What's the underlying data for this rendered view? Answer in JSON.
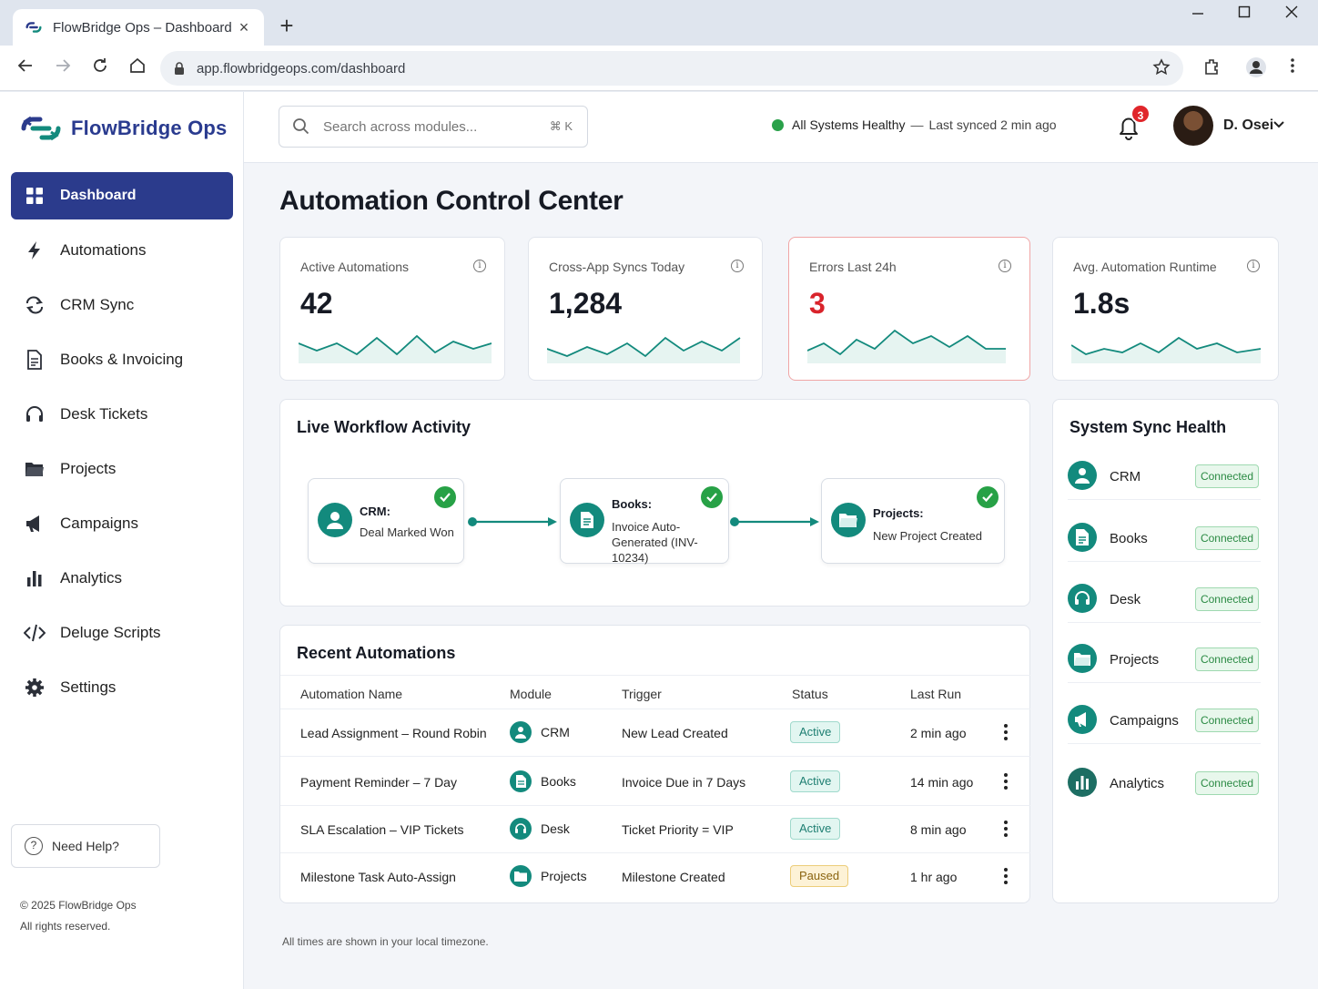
{
  "browser": {
    "tab_title": "FlowBridge Ops – Dashboard",
    "tab_close": "×",
    "new_tab": "+",
    "url": "app.flowbridgeops.com/dashboard"
  },
  "app": {
    "brand": "FlowBridge Ops",
    "accent_color": "#2b3b8c",
    "teal_color": "#138a7d"
  },
  "sidebar": {
    "items": [
      {
        "label": "Dashboard",
        "icon": "dashboard-grid-icon",
        "active": true
      },
      {
        "label": "Automations",
        "icon": "lightning-icon"
      },
      {
        "label": "CRM Sync",
        "icon": "sync-arrows-icon"
      },
      {
        "label": "Books & Invoicing",
        "icon": "document-icon"
      },
      {
        "label": "Desk Tickets",
        "icon": "headset-icon"
      },
      {
        "label": "Projects",
        "icon": "folder-icon"
      },
      {
        "label": "Campaigns",
        "icon": "megaphone-icon"
      },
      {
        "label": "Analytics",
        "icon": "bar-chart-icon"
      },
      {
        "label": "Deluge Scripts",
        "icon": "code-icon"
      },
      {
        "label": "Settings",
        "icon": "gear-icon"
      }
    ],
    "help": "Need Help?",
    "copyright_line1": "© 2025 FlowBridge Ops",
    "copyright_line2": "All rights reserved."
  },
  "header": {
    "search_placeholder": "Search across modules...",
    "search_shortcut": "⌘ K",
    "status_text": "All Systems Healthy",
    "status_sep": "—",
    "last_synced": "Last synced 2 min ago",
    "notification_count": "3",
    "user_name": "D. Osei"
  },
  "page": {
    "title": "Automation Control Center"
  },
  "kpis": [
    {
      "label": "Active Automations",
      "value": "42"
    },
    {
      "label": "Cross-App Syncs Today",
      "value": "1,284"
    },
    {
      "label": "Errors Last 24h",
      "value": "3",
      "alert": true
    },
    {
      "label": "Avg. Automation Runtime",
      "value": "1.8s"
    }
  ],
  "workflow": {
    "title": "Live Workflow Activity",
    "nodes": [
      {
        "title": "CRM:",
        "sub": "Deal Marked Won",
        "status": "complete"
      },
      {
        "title": "Books:",
        "sub": "Invoice Auto-Generated (INV-10234)",
        "status": "complete"
      },
      {
        "title": "Projects:",
        "sub": "New Project Created",
        "status": "complete"
      }
    ]
  },
  "recent": {
    "title": "Recent Automations",
    "columns": [
      "Automation Name",
      "Module",
      "Trigger",
      "Status",
      "Last Run"
    ],
    "rows": [
      {
        "name": "Lead Assignment – Round Robin",
        "module": "CRM",
        "trigger": "New Lead Created",
        "status": "Active",
        "last_run": "2 min ago"
      },
      {
        "name": "Payment Reminder – 7 Day",
        "module": "Books",
        "trigger": "Invoice Due in 7 Days",
        "status": "Active",
        "last_run": "14 min ago"
      },
      {
        "name": "SLA Escalation – VIP Tickets",
        "module": "Desk",
        "trigger": "Ticket Priority = VIP",
        "status": "Active",
        "last_run": "8 min ago"
      },
      {
        "name": "Milestone Task Auto-Assign",
        "module": "Projects",
        "trigger": "Milestone Created",
        "status": "Paused",
        "last_run": "1 hr ago"
      }
    ],
    "footnote": "All times are shown in your local timezone."
  },
  "sync_health": {
    "title": "System Sync Health",
    "items": [
      {
        "name": "CRM",
        "status": "Connected",
        "icon": "user-icon"
      },
      {
        "name": "Books",
        "status": "Connected",
        "icon": "document-icon"
      },
      {
        "name": "Desk",
        "status": "Connected",
        "icon": "headset-icon"
      },
      {
        "name": "Projects",
        "status": "Connected",
        "icon": "folder-icon"
      },
      {
        "name": "Campaigns",
        "status": "Connected",
        "icon": "megaphone-icon"
      },
      {
        "name": "Analytics",
        "status": "Connected",
        "icon": "bar-chart-icon"
      }
    ]
  }
}
